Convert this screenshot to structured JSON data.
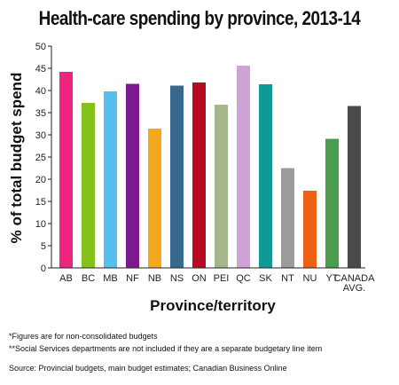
{
  "chart_data": {
    "type": "bar",
    "title": "Health-care spending by province, 2013-14",
    "xlabel": "Province/territory",
    "ylabel": "% of total budget spend",
    "ylim": [
      0,
      50
    ],
    "yticks": [
      0,
      5,
      10,
      15,
      20,
      25,
      30,
      35,
      40,
      45,
      50
    ],
    "grid": false,
    "legend": "none",
    "categories": [
      "AB",
      "BC",
      "MB",
      "NF",
      "NB",
      "NS",
      "ON",
      "PEI",
      "QC",
      "SK",
      "NT",
      "NU",
      "YT",
      "CANADA AVG."
    ],
    "values": [
      44.2,
      37.2,
      39.8,
      41.5,
      31.4,
      41.1,
      41.8,
      36.8,
      45.6,
      41.4,
      22.5,
      17.4,
      29.1,
      36.5
    ],
    "colors": [
      "#f0237f",
      "#84c21b",
      "#55bfee",
      "#7a1a8e",
      "#f5a81d",
      "#37698f",
      "#b80b22",
      "#a4b68c",
      "#cfa2d8",
      "#119a95",
      "#9b9b9b",
      "#ee6013",
      "#489e4c",
      "#4a4a4a"
    ]
  },
  "footnotes": [
    "*Figures are for non-consolidated budgets",
    "**Social Services departments are not included if they are a separate budgetary line item",
    "Source: Provincial budgets, main budget estimates; Canadian Business Online"
  ]
}
